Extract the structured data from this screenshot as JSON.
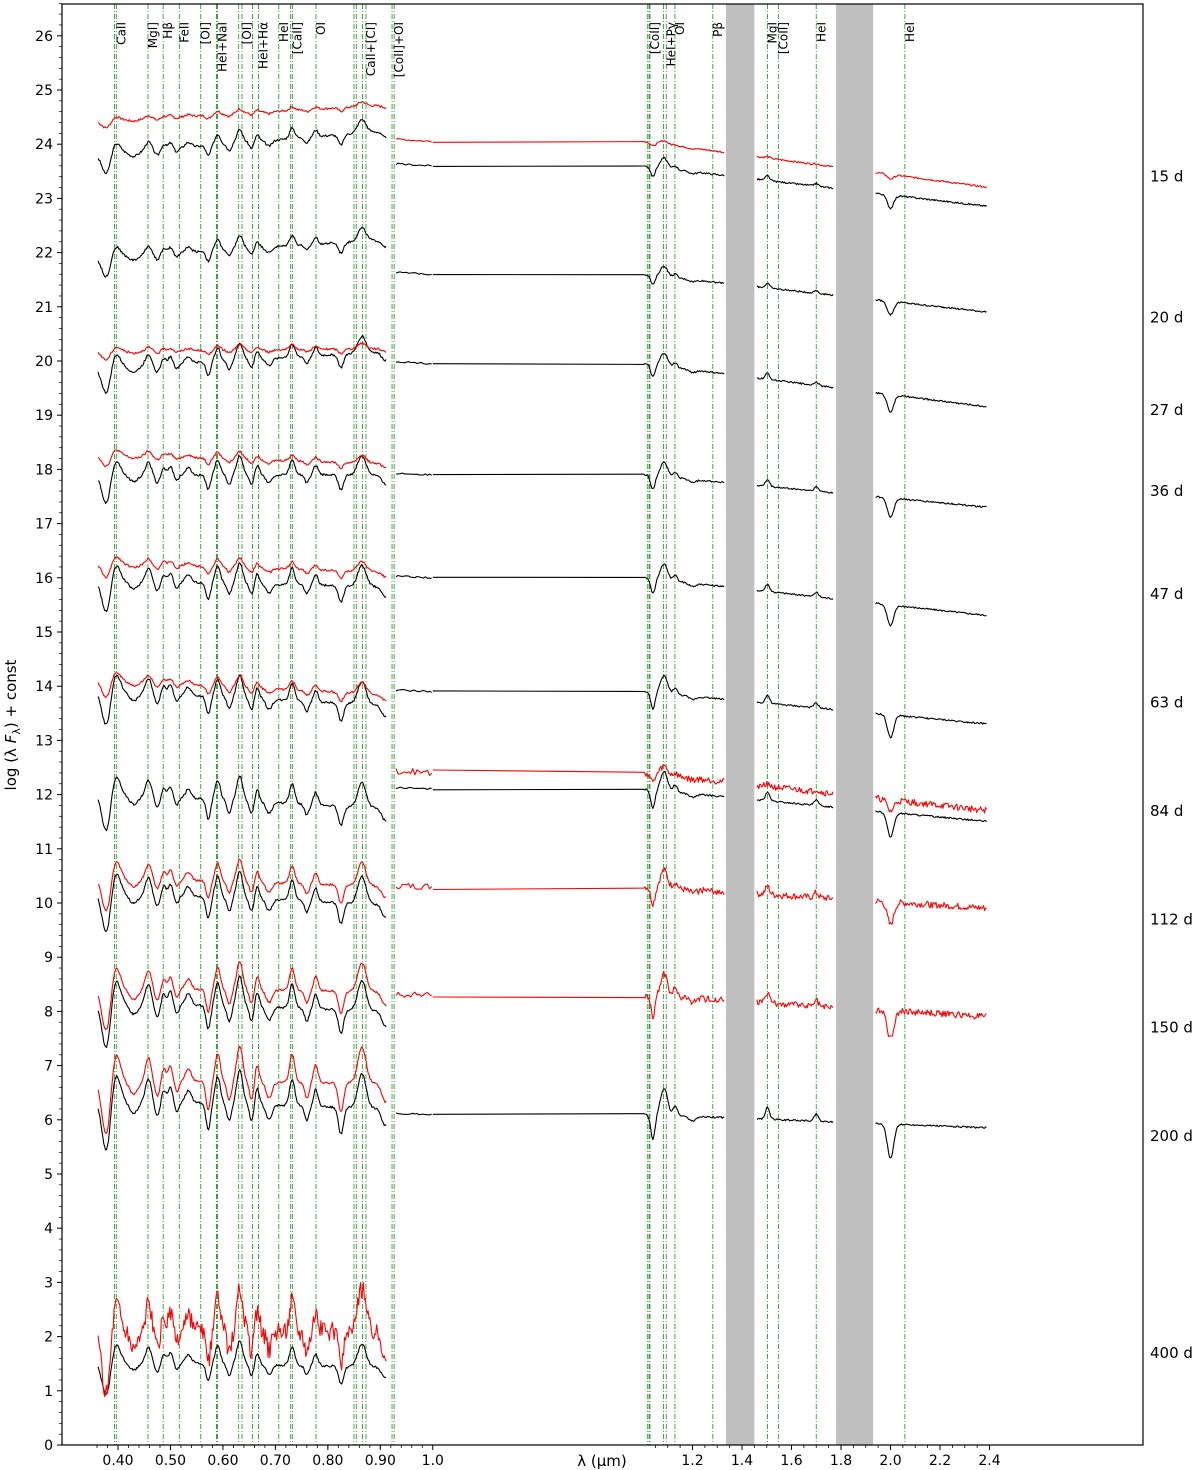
{
  "chart_data": {
    "type": "line",
    "xlabel": "λ (µm)",
    "ylabel": "log (λ F_λ) + const",
    "ylabel_parts": {
      "prefix": "log (λ ",
      "F": "F",
      "sub": "λ",
      "suffix": ") + const"
    },
    "x_scale": "piecewise: optical 0.35–1.0 µm, near-infrared 1.0–2.4 µm",
    "xlim": [
      0.35,
      2.4
    ],
    "ylim": [
      0,
      26.7
    ],
    "x_ticks": [
      0.4,
      0.5,
      0.6,
      0.7,
      0.8,
      0.9,
      1.0,
      1.2,
      1.4,
      1.6,
      1.8,
      2.0,
      2.2,
      2.4
    ],
    "x_tick_labels": [
      "0.40",
      "0.50",
      "0.60",
      "0.70",
      "0.80",
      "0.90",
      "1.0",
      "1.2",
      "1.4",
      "1.6",
      "1.8",
      "2.0",
      "2.2",
      "2.4"
    ],
    "y_ticks": [
      0,
      1,
      2,
      3,
      4,
      5,
      6,
      7,
      8,
      9,
      10,
      11,
      12,
      13,
      14,
      15,
      16,
      17,
      18,
      19,
      20,
      21,
      22,
      23,
      24,
      25,
      26
    ],
    "grid": false,
    "telluric_bands_um": [
      [
        1.335,
        1.45
      ],
      [
        1.78,
        1.93
      ]
    ],
    "line_ids": [
      {
        "label": "CaII",
        "x": [
          0.3934,
          0.3968
        ]
      },
      {
        "label": "MgI]",
        "x": [
          0.4571
        ]
      },
      {
        "label": "Hβ",
        "x": [
          0.4861
        ]
      },
      {
        "label": "FeII",
        "x": [
          0.5169
        ]
      },
      {
        "label": "[OI]",
        "x": [
          0.5577
        ]
      },
      {
        "label": "HeI+NaI",
        "x": [
          0.5876,
          0.589,
          0.5896
        ]
      },
      {
        "label": "[OI]",
        "x": [
          0.63,
          0.6364
        ]
      },
      {
        "label": "HeI+Hα",
        "x": [
          0.6563,
          0.6678
        ]
      },
      {
        "label": "HeI",
        "x": [
          0.7065
        ]
      },
      {
        "label": "[CaII]",
        "x": [
          0.7291,
          0.7324
        ]
      },
      {
        "label": "OI",
        "x": [
          0.7774
        ]
      },
      {
        "label": "CaII+[CI]",
        "x": [
          0.8498,
          0.8542,
          0.8662,
          0.8727
        ]
      },
      {
        "label": "[CoII]+OI",
        "x": [
          0.9224,
          0.9264
        ]
      },
      {
        "label": "[CoII]",
        "x": [
          1.019,
          1.025,
          1.028
        ]
      },
      {
        "label": "HeI+Pγ",
        "x": [
          1.083,
          1.094
        ]
      },
      {
        "label": "OI",
        "x": [
          1.129
        ]
      },
      {
        "label": "Pβ",
        "x": [
          1.282
        ]
      },
      {
        "label": "MgI",
        "x": [
          1.503
        ]
      },
      {
        "label": "[CoII]",
        "x": [
          1.547
        ]
      },
      {
        "label": "HeI",
        "x": [
          1.7
        ]
      },
      {
        "label": "HeI",
        "x": [
          2.058
        ]
      }
    ],
    "line_id_color": "#2ca02c",
    "series_colors": {
      "primary": "#000000",
      "secondary": "#ff0000"
    },
    "epochs": [
      {
        "label": "15 d",
        "label_y": 23.4,
        "black": {
          "base": 24.0,
          "slope": 0.8,
          "amp": 0.35,
          "nir_start": 23.6,
          "nir_end": 22.85,
          "nir": true
        },
        "red": {
          "base": 24.55,
          "slope": 0.55,
          "amp": 0.12,
          "nir_start": 24.05,
          "nir_end": 23.2,
          "nir": true
        }
      },
      {
        "label": "20 d",
        "label_y": 20.8,
        "black": {
          "base": 22.05,
          "slope": 0.6,
          "amp": 0.35,
          "nir_start": 21.6,
          "nir_end": 20.9,
          "nir": true
        }
      },
      {
        "label": "27 d",
        "label_y": 19.1,
        "black": {
          "base": 20.0,
          "slope": 0.55,
          "amp": 0.45,
          "nir_start": 19.95,
          "nir_end": 19.15,
          "nir": true
        },
        "red": {
          "base": 20.2,
          "slope": 0.1,
          "amp": 0.15,
          "nir": false
        }
      },
      {
        "label": "36 d",
        "label_y": 17.6,
        "black": {
          "base": 17.9,
          "slope": 0.0,
          "amp": 0.5,
          "nir_start": 17.9,
          "nir_end": 17.3,
          "nir": true
        },
        "red": {
          "base": 18.2,
          "slope": -0.3,
          "amp": 0.2,
          "nir": false
        }
      },
      {
        "label": "47 d",
        "label_y": 15.7,
        "black": {
          "base": 15.9,
          "slope": -0.2,
          "amp": 0.55,
          "nir_start": 16.0,
          "nir_end": 15.3,
          "nir": true
        },
        "red": {
          "base": 16.2,
          "slope": -0.3,
          "amp": 0.25,
          "nir": false
        }
      },
      {
        "label": "63 d",
        "label_y": 13.7,
        "black": {
          "base": 13.8,
          "slope": -0.5,
          "amp": 0.6,
          "nir_start": 13.9,
          "nir_end": 13.3,
          "nir": true
        },
        "red": {
          "base": 14.0,
          "slope": -0.5,
          "amp": 0.3,
          "nir": false
        }
      },
      {
        "label": "84 d",
        "label_y": 11.7,
        "black": {
          "base": 11.9,
          "slope": -0.5,
          "amp": 0.65,
          "nir_start": 12.1,
          "nir_end": 11.5,
          "nir": true
        },
        "red": {
          "base": 12.2,
          "slope": 0.0,
          "amp": 0.3,
          "nir_start": 12.4,
          "nir_end": 11.7,
          "nir": true,
          "nir_only": true
        }
      },
      {
        "label": "112 d",
        "label_y": 9.7,
        "black": {
          "base": 10.1,
          "slope": -0.4,
          "amp": 0.7,
          "nir": false
        },
        "red": {
          "base": 10.4,
          "slope": -0.3,
          "amp": 0.6,
          "nir_start": 10.3,
          "nir_end": 9.9,
          "nir": true
        }
      },
      {
        "label": "150 d",
        "label_y": 7.7,
        "black": {
          "base": 8.1,
          "slope": -0.3,
          "amp": 0.8,
          "nir": false
        },
        "red": {
          "base": 8.4,
          "slope": -0.1,
          "amp": 0.75,
          "nir_start": 8.3,
          "nir_end": 7.9,
          "nir": true
        }
      },
      {
        "label": "200 d",
        "label_y": 5.7,
        "black": {
          "base": 6.3,
          "slope": -0.3,
          "amp": 0.9,
          "nir_start": 6.1,
          "nir_end": 5.85,
          "nir": true
        },
        "red": {
          "base": 6.7,
          "slope": -0.1,
          "amp": 0.95,
          "nir": false
        }
      },
      {
        "label": "400 d",
        "label_y": 1.7,
        "black": {
          "base": 1.5,
          "slope": -0.2,
          "amp": 0.6,
          "nir": false
        },
        "red": {
          "base": 2.1,
          "slope": 0.0,
          "amp": 1.1,
          "nir": false
        }
      }
    ]
  }
}
